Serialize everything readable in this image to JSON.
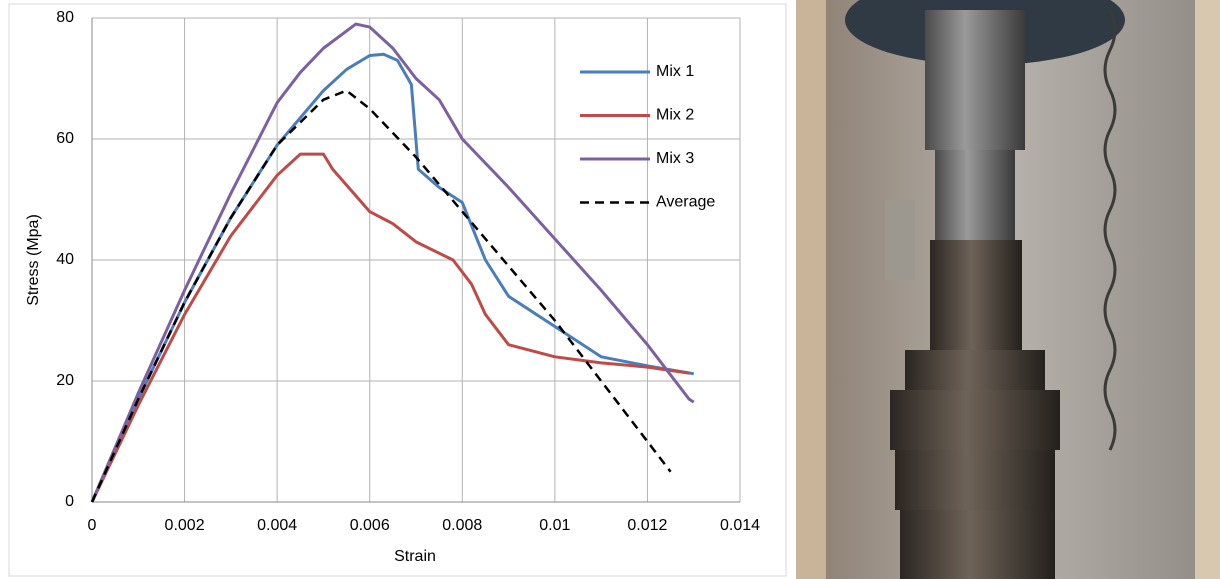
{
  "chart_data": {
    "type": "line",
    "xlabel": "Strain",
    "ylabel": "Stress (Mpa)",
    "xlim": [
      0,
      0.014
    ],
    "xticks": [
      0,
      0.002,
      0.004,
      0.006,
      0.008,
      0.01,
      0.012,
      0.014
    ],
    "ylim": [
      0,
      80
    ],
    "yticks": [
      0,
      20,
      40,
      60,
      80
    ],
    "grid": true,
    "legend": "upper right",
    "series": [
      {
        "name": "Mix 1",
        "color": "#4a7ebb",
        "dash": false,
        "x": [
          0,
          0.001,
          0.002,
          0.003,
          0.004,
          0.005,
          0.0055,
          0.006,
          0.0063,
          0.0066,
          0.0069,
          0.00705,
          0.0075,
          0.008,
          0.0085,
          0.009,
          0.01,
          0.011,
          0.012,
          0.013
        ],
        "values": [
          0,
          17,
          33,
          47,
          59,
          68,
          71.5,
          73.8,
          74,
          73,
          69,
          55,
          52,
          49.5,
          40,
          34,
          29,
          24,
          22.5,
          21.2
        ]
      },
      {
        "name": "Mix 2",
        "color": "#be4b48",
        "dash": false,
        "x": [
          0,
          0.001,
          0.002,
          0.003,
          0.004,
          0.0045,
          0.005,
          0.0052,
          0.006,
          0.0065,
          0.007,
          0.0078,
          0.0082,
          0.0085,
          0.009,
          0.01,
          0.011,
          0.012,
          0.0129
        ],
        "values": [
          0,
          16,
          31,
          44,
          54,
          57.5,
          57.5,
          55,
          48,
          46,
          43,
          40,
          36,
          31,
          26,
          24,
          23,
          22.3,
          21.3
        ]
      },
      {
        "name": "Mix 3",
        "color": "#7d60a0",
        "dash": false,
        "x": [
          0,
          0.001,
          0.002,
          0.003,
          0.004,
          0.0045,
          0.005,
          0.0057,
          0.006,
          0.0065,
          0.007,
          0.0075,
          0.008,
          0.009,
          0.01,
          0.011,
          0.012,
          0.0125,
          0.0129,
          0.013
        ],
        "values": [
          0,
          18,
          35,
          51,
          66,
          71,
          75,
          79,
          78.5,
          75,
          70,
          66.5,
          60,
          52,
          43.5,
          35,
          26,
          21,
          17,
          16.5
        ]
      },
      {
        "name": "Average",
        "color": "#000000",
        "dash": true,
        "x": [
          0,
          0.001,
          0.002,
          0.003,
          0.004,
          0.005,
          0.0055,
          0.006,
          0.007,
          0.008,
          0.009,
          0.01,
          0.011,
          0.012,
          0.0125
        ],
        "values": [
          0,
          17,
          33,
          47,
          59,
          66.5,
          68,
          65,
          57,
          48,
          39,
          30,
          20,
          10,
          5
        ]
      }
    ]
  }
}
